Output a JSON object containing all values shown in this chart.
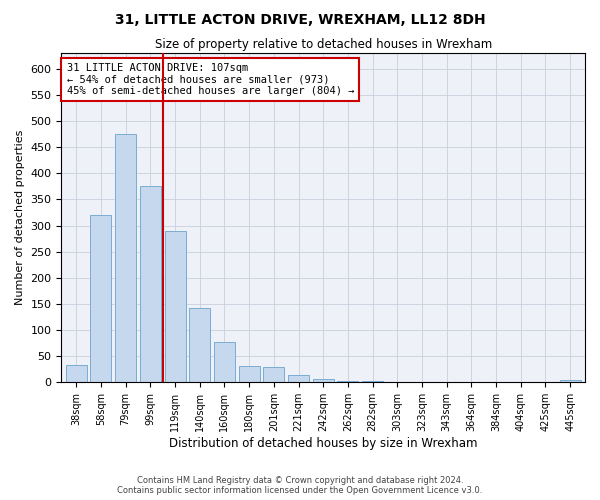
{
  "title": "31, LITTLE ACTON DRIVE, WREXHAM, LL12 8DH",
  "subtitle": "Size of property relative to detached houses in Wrexham",
  "xlabel": "Distribution of detached houses by size in Wrexham",
  "ylabel": "Number of detached properties",
  "annotation_line1": "31 LITTLE ACTON DRIVE: 107sqm",
  "annotation_line2": "← 54% of detached houses are smaller (973)",
  "annotation_line3": "45% of semi-detached houses are larger (804) →",
  "categories": [
    "38sqm",
    "58sqm",
    "79sqm",
    "99sqm",
    "119sqm",
    "140sqm",
    "160sqm",
    "180sqm",
    "201sqm",
    "221sqm",
    "242sqm",
    "262sqm",
    "282sqm",
    "303sqm",
    "323sqm",
    "343sqm",
    "364sqm",
    "384sqm",
    "404sqm",
    "425sqm",
    "445sqm"
  ],
  "values": [
    33,
    320,
    475,
    375,
    290,
    143,
    77,
    32,
    30,
    15,
    7,
    3,
    2,
    1,
    1,
    1,
    1,
    0,
    0,
    0,
    4
  ],
  "bar_color": "#c5d8ee",
  "bar_edge_color": "#7aadd4",
  "vline_x": 3.5,
  "vline_color": "#cc0000",
  "box_color": "#cc0000",
  "background_color": "#ffffff",
  "plot_bg_color": "#eef2f8",
  "grid_color": "#c8d0dc",
  "footer_line1": "Contains HM Land Registry data © Crown copyright and database right 2024.",
  "footer_line2": "Contains public sector information licensed under the Open Government Licence v3.0.",
  "ylim": [
    0,
    630
  ],
  "yticks": [
    0,
    50,
    100,
    150,
    200,
    250,
    300,
    350,
    400,
    450,
    500,
    550,
    600
  ]
}
